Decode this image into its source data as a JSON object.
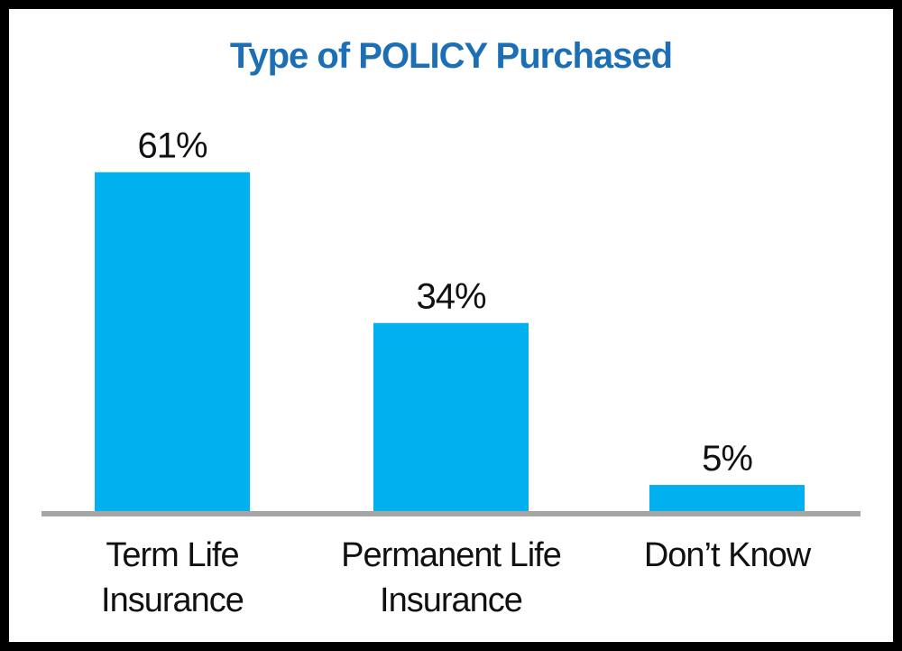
{
  "chart_data": {
    "type": "bar",
    "title": "Type of POLICY Purchased",
    "categories": [
      [
        "Term Life",
        "Insurance"
      ],
      [
        "Permanent Life",
        "Insurance"
      ],
      [
        "Don’t Know"
      ]
    ],
    "values": [
      61,
      34,
      5
    ],
    "value_labels": [
      "61%",
      "34%",
      "5%"
    ],
    "ylim": [
      0,
      65
    ],
    "grid": false,
    "legend": "none",
    "colors": {
      "bar": "#00b0ef",
      "title": "#1d6fb5",
      "axis": "#a6a6a6",
      "text": "#111111",
      "frame": "#000000"
    }
  }
}
